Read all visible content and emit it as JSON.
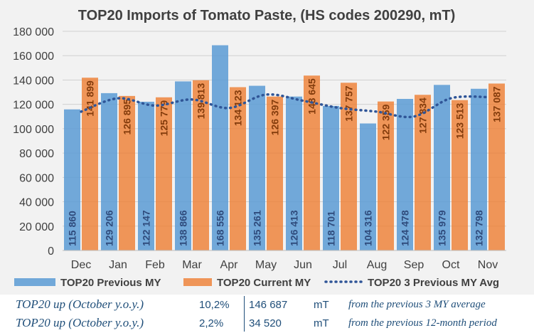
{
  "chart_data": {
    "type": "bar",
    "title": "TOP20 Imports of Tomato Paste, (HS codes 200290, mT)",
    "categories": [
      "Dec",
      "Jan",
      "Feb",
      "Mar",
      "Apr",
      "May",
      "Jun",
      "Jul",
      "Aug",
      "Sep",
      "Oct",
      "Nov"
    ],
    "ylim": [
      0,
      180000
    ],
    "yticks": [
      0,
      20000,
      40000,
      60000,
      80000,
      100000,
      120000,
      140000,
      160000,
      180000
    ],
    "ytick_labels": [
      "0",
      "20 000",
      "40 000",
      "60 000",
      "80 000",
      "100 000",
      "120 000",
      "140 000",
      "160 000",
      "180 000"
    ],
    "grid": true,
    "legend_position": "bottom",
    "series": [
      {
        "name": "TOP20 Previous MY",
        "color": "#5b9bd5",
        "values": [
          115860,
          129206,
          122147,
          138866,
          168556,
          135261,
          126413,
          118701,
          104316,
          124478,
          135979,
          132798
        ],
        "labels": [
          "115 860",
          "129 206",
          "122 147",
          "138 866",
          "168 556",
          "135 261",
          "126 413",
          "118 701",
          "104 316",
          "124 478",
          "135 979",
          "132 798"
        ]
      },
      {
        "name": "TOP20 Current MY",
        "color": "#ed7d31",
        "values": [
          141899,
          126895,
          125779,
          139813,
          134123,
          126397,
          143645,
          137757,
          122359,
          127834,
          123513,
          137087
        ],
        "labels": [
          "141 899",
          "126 895",
          "125 779",
          "139 813",
          "134 123",
          "126 397",
          "143 645",
          "137 757",
          "122 359",
          "127 834",
          "123 513",
          "137 087"
        ]
      },
      {
        "name": "TOP20 3 Previous MY Avg",
        "type": "line",
        "style": "dotted",
        "color": "#2f5597",
        "values": [
          114000,
          125000,
          119000,
          124000,
          117000,
          128000,
          123000,
          117000,
          114000,
          110000,
          125000,
          126000
        ]
      }
    ]
  },
  "summary": [
    {
      "label": "TOP20 up (October y.o.y.)",
      "percent": "10,2%",
      "value": "146 687",
      "unit": "mT",
      "description": "from the previous 3 MY average"
    },
    {
      "label": "TOP20 up (October y.o.y.)",
      "percent": "2,2%",
      "value": "34 520",
      "unit": "mT",
      "description": "from the previous 12-month period"
    }
  ]
}
